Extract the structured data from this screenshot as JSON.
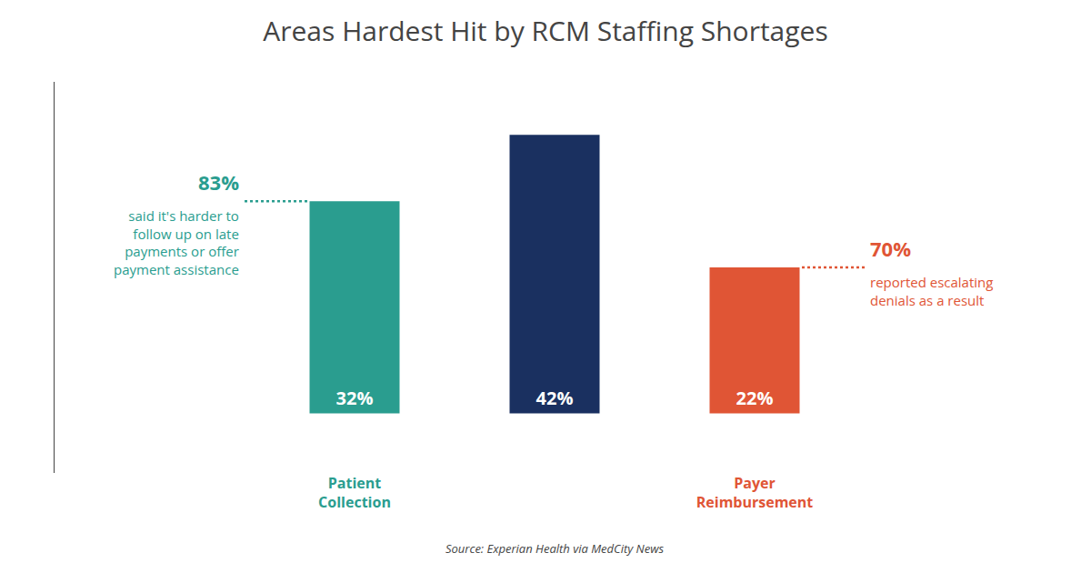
{
  "chart_data": {
    "type": "bar",
    "title": "Areas Hardest Hit by RCM Staffing Shortages",
    "categories": [
      "Patient\nCollection",
      null,
      "Payer\nReimbursement"
    ],
    "values": [
      32,
      42,
      22
    ],
    "value_labels": [
      "32%",
      "42%",
      "22%"
    ],
    "data_labels": true,
    "colors": [
      "#2a9d8f",
      "#1a3060",
      "#e05535"
    ],
    "ylim": [
      -9,
      50
    ],
    "tick_labels": "x",
    "grid": false,
    "annotations": [
      {
        "category": "Patient\nCollection",
        "text": "83%",
        "note": "said it's harder to\nfollow up on late\npayments or offer\npayment assistance",
        "color": "#2a9d8f"
      },
      {
        "category": "Payer\nReimbursement",
        "text": "70%",
        "note": "reported escalating\ndenials as a result",
        "color": "#e05535"
      }
    ],
    "source": "Source: Experian Health via MedCity News"
  }
}
